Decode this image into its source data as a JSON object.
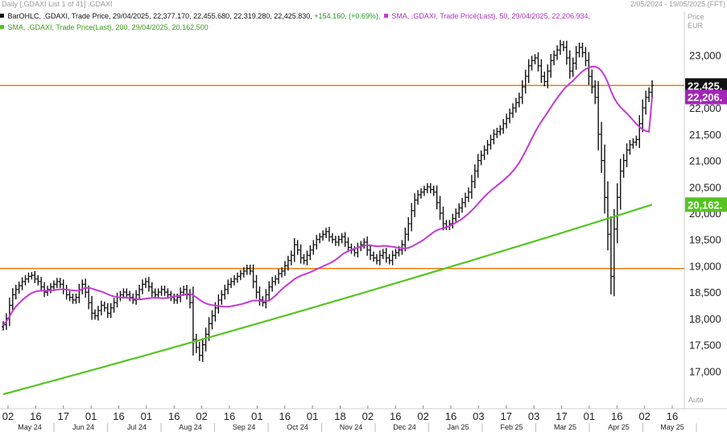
{
  "header": {
    "title": "Daily [.GDAXI List 1 of 41] .GDAXI",
    "range": "2/05/2024 - 19/05/2025 (FFT)"
  },
  "legend": {
    "ohlc": "BarOHLC, .GDAXI, Trade Price, 29/04/2025, 22,377.170, 22,455.680, 22,319.280, 22,425.830,",
    "ohlc_change": "+154.160, (+0.69%),",
    "sma50": "SMA, .GDAXI, Trade Price(Last), 50, 29/04/2025, 22,206.934,",
    "sma200": "SMA, .GDAXI, Trade Price(Last), 200, 29/04/2025, 20,162.500"
  },
  "axis_header": {
    "price": "Price",
    "currency": "EUR"
  },
  "auto_label": "Auto",
  "colors": {
    "bars": "#111111",
    "sma50": "#c23ad4",
    "sma200": "#55c421",
    "hline": "#ef7d17",
    "last_tag": "#111111",
    "sma50_tag": "#a324b8",
    "sma200_tag": "#55c421"
  },
  "chart_data": {
    "type": "ohlc",
    "y_ticks": [
      "23,000",
      "22,500",
      "22,000",
      "21,500",
      "21,000",
      "20,500",
      "20,000",
      "19,500",
      "19,000",
      "18,500",
      "18,000",
      "17,500",
      "17,000"
    ],
    "x_tick_labels": [
      "02",
      "16",
      "17",
      "01",
      "16",
      "01",
      "16",
      "02",
      "16",
      "01",
      "16",
      "01",
      "18",
      "02",
      "16",
      "02",
      "16",
      "03",
      "17",
      "03",
      "17",
      "01",
      "16",
      "02",
      "16"
    ],
    "month_labels": [
      "May 24",
      "Jun 24",
      "Jul 24",
      "Aug 24",
      "Sep 24",
      "Oct 24",
      "Nov 24",
      "Dec 24",
      "Jan 25",
      "Feb 25",
      "Mar 25",
      "Apr 25",
      "May 25"
    ],
    "ylim": [
      16500,
      23500
    ],
    "horizontal_lines": [
      22425.83,
      18950
    ],
    "last_value_tags": [
      {
        "label": "22,425.",
        "value": 22425.83,
        "series": "last"
      },
      {
        "label": "22,206.",
        "value": 22206.93,
        "series": "sma50"
      },
      {
        "label": "20,162.",
        "value": 20162.5,
        "series": "sma200"
      }
    ],
    "closes_approx": [
      17880,
      18000,
      18250,
      18450,
      18550,
      18620,
      18700,
      18750,
      18800,
      18820,
      18750,
      18700,
      18600,
      18500,
      18550,
      18600,
      18650,
      18700,
      18650,
      18550,
      18450,
      18400,
      18350,
      18400,
      18550,
      18650,
      18500,
      18300,
      18100,
      18050,
      18150,
      18250,
      18200,
      18100,
      18200,
      18300,
      18400,
      18450,
      18500,
      18450,
      18400,
      18350,
      18450,
      18550,
      18650,
      18700,
      18600,
      18500,
      18450,
      18500,
      18550,
      18500,
      18450,
      18400,
      18350,
      18400,
      18500,
      18550,
      18450,
      18300,
      17600,
      17450,
      17300,
      17500,
      17700,
      17900,
      18050,
      18200,
      18350,
      18450,
      18550,
      18650,
      18700,
      18750,
      18800,
      18850,
      18900,
      18950,
      18900,
      18700,
      18500,
      18350,
      18300,
      18450,
      18600,
      18700,
      18750,
      18850,
      18900,
      19000,
      19100,
      19200,
      19400,
      19300,
      19150,
      19100,
      19200,
      19300,
      19400,
      19500,
      19550,
      19600,
      19650,
      19550,
      19500,
      19450,
      19500,
      19550,
      19450,
      19350,
      19300,
      19250,
      19350,
      19400,
      19450,
      19300,
      19200,
      19150,
      19100,
      19200,
      19250,
      19150,
      19100,
      19200,
      19250,
      19300,
      19400,
      19600,
      19800,
      20050,
      20250,
      20350,
      20400,
      20450,
      20500,
      20450,
      20400,
      20200,
      20000,
      19800,
      19750,
      19800,
      19900,
      20000,
      20100,
      20200,
      20300,
      20400,
      20600,
      20800,
      21000,
      21100,
      21200,
      21300,
      21400,
      21500,
      21550,
      21600,
      21700,
      21800,
      21900,
      22000,
      22100,
      22200,
      22400,
      22600,
      22800,
      22900,
      22950,
      22800,
      22600,
      22500,
      22700,
      22900,
      23000,
      23100,
      23200,
      23150,
      22950,
      22700,
      22850,
      23050,
      23150,
      23050,
      22900,
      22600,
      22400,
      22200,
      21500,
      21000,
      20300,
      19600,
      18800,
      19700,
      20300,
      20800,
      21000,
      21200,
      21300,
      21350,
      21400,
      21700,
      22000,
      22200,
      22300,
      22426
    ]
  }
}
